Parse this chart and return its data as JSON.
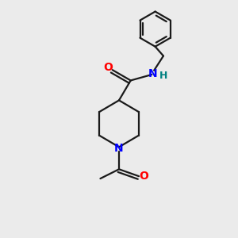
{
  "bg_color": "#ebebeb",
  "bond_color": "#1a1a1a",
  "N_color": "#0000ff",
  "O_color": "#ff0000",
  "H_color": "#008080",
  "line_width": 1.6,
  "fig_size": [
    3.0,
    3.0
  ],
  "dpi": 100,
  "xlim": [
    0,
    10
  ],
  "ylim": [
    0,
    10
  ]
}
